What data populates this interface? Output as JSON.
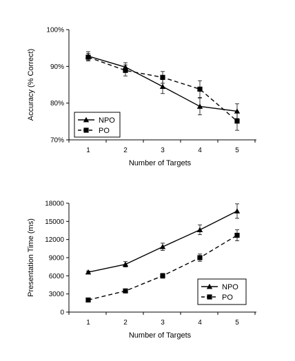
{
  "chart_data": [
    {
      "type": "line",
      "xlabel": "Number of Targets",
      "ylabel": "Accuracy (% Correct)",
      "x": [
        1,
        2,
        3,
        4,
        5
      ],
      "ylim": [
        70,
        100
      ],
      "y_ticks": [
        70,
        80,
        90,
        100
      ],
      "y_tick_labels": [
        "70%",
        "80%",
        "90%",
        "100%"
      ],
      "x_tick_labels": [
        "1",
        "2",
        "3",
        "4",
        "5"
      ],
      "grid": false,
      "legend_position": "bottom-left",
      "series": [
        {
          "name": "NPO",
          "marker": "triangle",
          "line": "solid",
          "color": "#000000",
          "values": [
            92.8,
            89.8,
            84.5,
            79.1,
            77.8
          ],
          "error": [
            1.2,
            1.2,
            1.9,
            2.3,
            2.0
          ]
        },
        {
          "name": "PO",
          "marker": "square",
          "line": "dashed",
          "color": "#000000",
          "values": [
            92.5,
            88.9,
            87.0,
            83.8,
            75.1
          ],
          "error": [
            1.0,
            1.5,
            1.6,
            2.3,
            2.5
          ]
        }
      ]
    },
    {
      "type": "line",
      "xlabel": "Number of Targets",
      "ylabel": "Presentation Time (ms)",
      "x": [
        1,
        2,
        3,
        4,
        5
      ],
      "ylim": [
        0,
        18000
      ],
      "y_ticks": [
        0,
        3000,
        6000,
        9000,
        12000,
        15000,
        18000
      ],
      "y_tick_labels": [
        "0",
        "3000",
        "6000",
        "9000",
        "12000",
        "15000",
        "18000"
      ],
      "x_tick_labels": [
        "1",
        "2",
        "3",
        "4",
        "5"
      ],
      "grid": false,
      "legend_position": "bottom-right",
      "series": [
        {
          "name": "NPO",
          "marker": "triangle",
          "line": "solid",
          "color": "#000000",
          "values": [
            6600,
            7900,
            10800,
            13600,
            16700
          ],
          "error": [
            200,
            450,
            600,
            800,
            1200
          ]
        },
        {
          "name": "PO",
          "marker": "square",
          "line": "dashed",
          "color": "#000000",
          "values": [
            2000,
            3500,
            6000,
            9000,
            12700
          ],
          "error": [
            100,
            150,
            400,
            600,
            900
          ]
        }
      ]
    }
  ]
}
